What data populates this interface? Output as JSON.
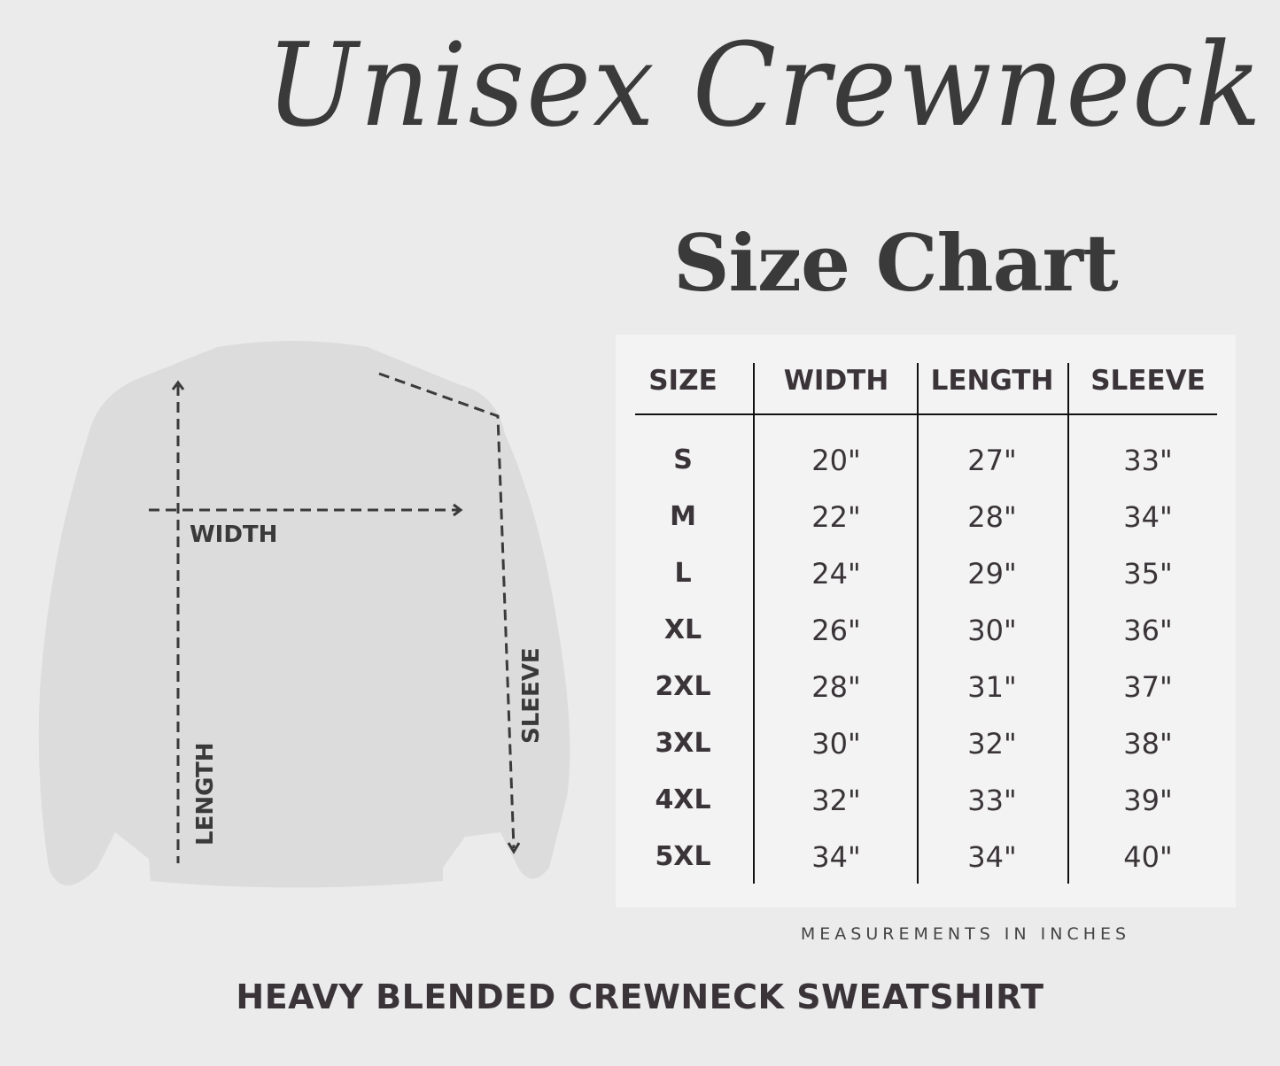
{
  "title": {
    "script": "Unisex Crewneck",
    "subtitle": "Size Chart"
  },
  "diagram": {
    "width_label": "WIDTH",
    "length_label": "LENGTH",
    "sleeve_label": "SLEEVE"
  },
  "table": {
    "headers": [
      "SIZE",
      "WIDTH",
      "LENGTH",
      "SLEEVE"
    ],
    "rows": [
      [
        "S",
        "20\"",
        "27\"",
        "33\""
      ],
      [
        "M",
        "22\"",
        "28\"",
        "34\""
      ],
      [
        "L",
        "24\"",
        "29\"",
        "35\""
      ],
      [
        "XL",
        "26\"",
        "30\"",
        "36\""
      ],
      [
        "2XL",
        "28\"",
        "31\"",
        "37\""
      ],
      [
        "3XL",
        "30\"",
        "32\"",
        "38\""
      ],
      [
        "4XL",
        "32\"",
        "33\"",
        "39\""
      ],
      [
        "5XL",
        "34\"",
        "34\"",
        "40\""
      ]
    ]
  },
  "note": "MEASUREMENTS IN INCHES",
  "footer": "HEAVY BLENDED CREWNECK SWEATSHIRT",
  "colors": {
    "background": "#ebebeb",
    "panel": "#f3f3f3",
    "text": "#3a3438"
  }
}
